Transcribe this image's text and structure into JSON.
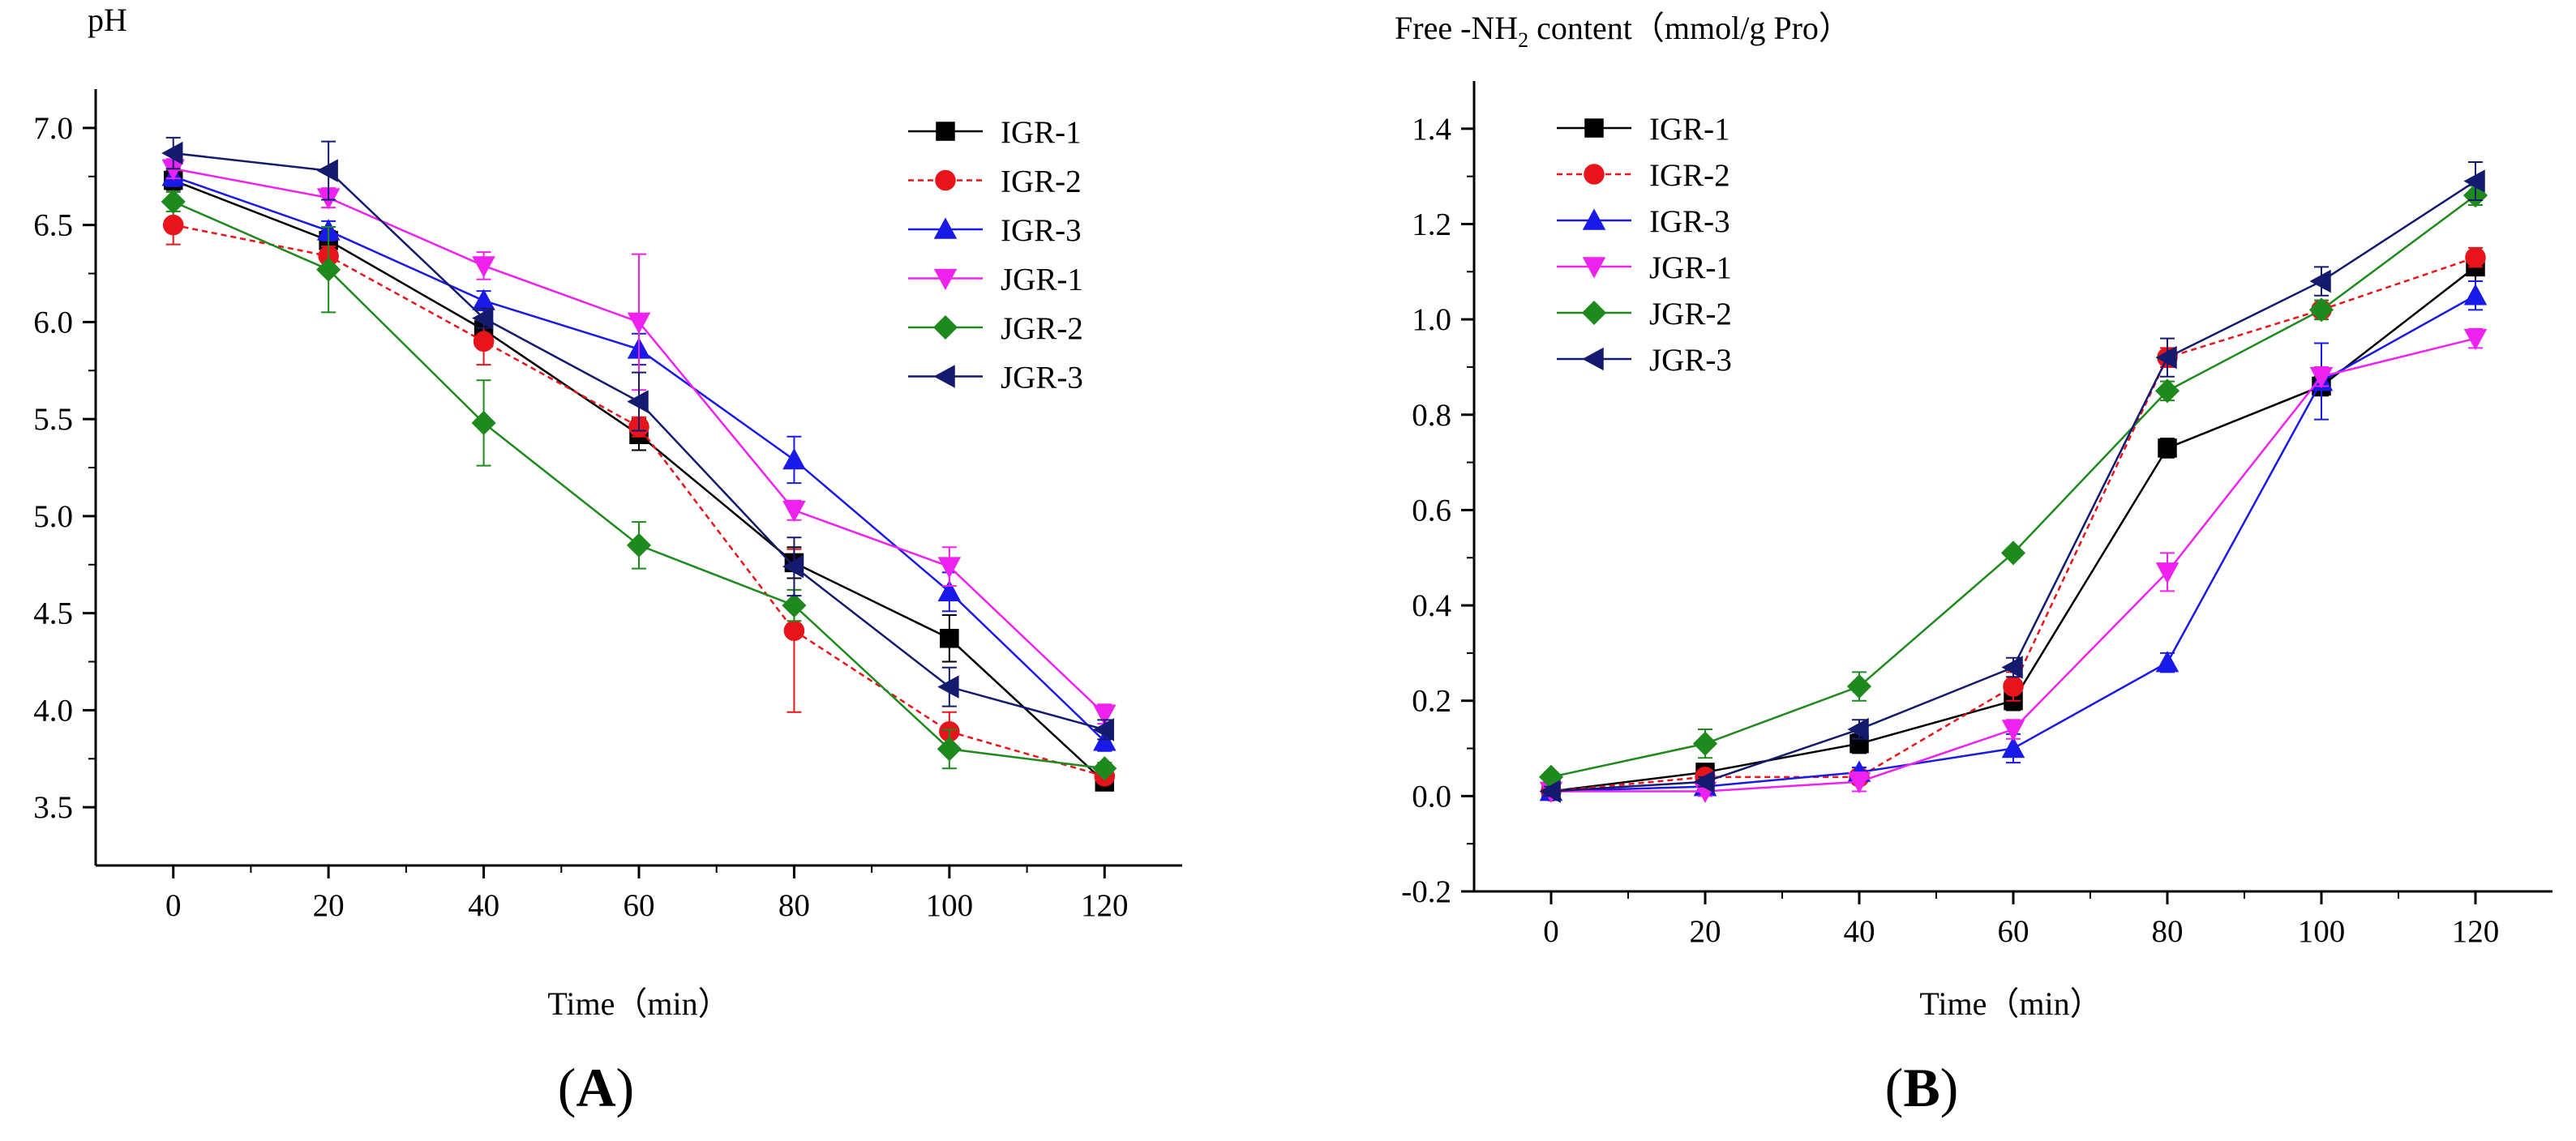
{
  "chart_data": [
    {
      "type": "line",
      "panel_label_open": "(",
      "panel_label_letter": "A",
      "panel_label_close": ")",
      "ylabel": "pH",
      "xlabel": "Time（min）",
      "x": [
        0,
        20,
        40,
        60,
        80,
        100,
        120
      ],
      "xticks": [
        "0",
        "20",
        "40",
        "60",
        "80",
        "100",
        "120"
      ],
      "xlim": [
        -10,
        130
      ],
      "yticks": [
        "3.5",
        "4.0",
        "4.5",
        "5.0",
        "5.5",
        "6.0",
        "6.5",
        "7.0"
      ],
      "ytick_values": [
        3.5,
        4.0,
        4.5,
        5.0,
        5.5,
        6.0,
        6.5,
        7.0
      ],
      "ylim": [
        3.2,
        7.2
      ],
      "legend_position": "top-right",
      "series": [
        {
          "name": "IGR-1",
          "color": "#000000",
          "marker": "square",
          "dash": "solid",
          "values": [
            6.73,
            6.42,
            5.96,
            5.42,
            4.76,
            4.37,
            3.63
          ],
          "errors": [
            0.05,
            0.05,
            0.05,
            0.08,
            0.08,
            0.12,
            0.03
          ]
        },
        {
          "name": "IGR-2",
          "color": "#e8141b",
          "marker": "circle",
          "dash": "dashed",
          "values": [
            6.5,
            6.34,
            5.9,
            5.46,
            4.41,
            3.89,
            3.66
          ],
          "errors": [
            0.1,
            0.05,
            0.12,
            0.05,
            0.42,
            0.1,
            0.03
          ]
        },
        {
          "name": "IGR-3",
          "color": "#1a1ae8",
          "marker": "triangle-up",
          "dash": "solid",
          "values": [
            6.75,
            6.47,
            6.11,
            5.86,
            5.29,
            4.61,
            3.84
          ],
          "errors": [
            0.05,
            0.05,
            0.05,
            0.08,
            0.12,
            0.1,
            0.05
          ]
        },
        {
          "name": "JGR-1",
          "color": "#ee22ee",
          "marker": "triangle-down",
          "dash": "solid",
          "values": [
            6.79,
            6.64,
            6.29,
            6.0,
            5.03,
            4.74,
            3.98
          ],
          "errors": [
            0.05,
            0.05,
            0.07,
            0.35,
            0.05,
            0.1,
            0.05
          ]
        },
        {
          "name": "JGR-2",
          "color": "#1e8a1e",
          "marker": "diamond",
          "dash": "solid",
          "values": [
            6.62,
            6.27,
            5.48,
            4.85,
            4.54,
            3.8,
            3.7
          ],
          "errors": [
            0.05,
            0.22,
            0.22,
            0.12,
            0.08,
            0.1,
            0.03
          ]
        },
        {
          "name": "JGR-3",
          "color": "#141a6e",
          "marker": "triangle-left",
          "dash": "solid",
          "values": [
            6.87,
            6.78,
            6.02,
            5.59,
            4.74,
            4.12,
            3.9
          ],
          "errors": [
            0.08,
            0.15,
            0.05,
            0.15,
            0.15,
            0.1,
            0.05
          ]
        }
      ]
    },
    {
      "type": "line",
      "panel_label_open": "(",
      "panel_label_letter": "B",
      "panel_label_close": ")",
      "ylabel_prefix": "Free -NH",
      "ylabel_sub": "2",
      "ylabel_suffix": " content（mmol/g Pro）",
      "xlabel": "Time（min）",
      "x": [
        0,
        20,
        40,
        60,
        80,
        100,
        120
      ],
      "xticks": [
        "0",
        "20",
        "40",
        "60",
        "80",
        "100",
        "120"
      ],
      "xlim": [
        -10,
        130
      ],
      "yticks": [
        "-0.2",
        "0.0",
        "0.2",
        "0.4",
        "0.6",
        "0.8",
        "1.0",
        "1.2",
        "1.4"
      ],
      "ytick_values": [
        -0.2,
        0.0,
        0.2,
        0.4,
        0.6,
        0.8,
        1.0,
        1.2,
        1.4
      ],
      "ylim": [
        -0.2,
        1.5
      ],
      "legend_position": "top-left",
      "series": [
        {
          "name": "IGR-1",
          "color": "#000000",
          "marker": "square",
          "dash": "solid",
          "values": [
            0.01,
            0.05,
            0.11,
            0.2,
            0.73,
            0.86,
            1.11
          ],
          "errors": [
            0.01,
            0.01,
            0.02,
            0.02,
            0.02,
            0.02,
            0.03
          ]
        },
        {
          "name": "IGR-2",
          "color": "#e8141b",
          "marker": "circle",
          "dash": "dashed",
          "values": [
            0.01,
            0.04,
            0.04,
            0.23,
            0.92,
            1.02,
            1.13
          ],
          "errors": [
            0.01,
            0.01,
            0.01,
            0.03,
            0.02,
            0.02,
            0.02
          ]
        },
        {
          "name": "IGR-3",
          "color": "#1a1ae8",
          "marker": "triangle-up",
          "dash": "solid",
          "values": [
            0.01,
            0.02,
            0.05,
            0.1,
            0.28,
            0.87,
            1.05
          ],
          "errors": [
            0.01,
            0.01,
            0.01,
            0.03,
            0.02,
            0.08,
            0.03
          ]
        },
        {
          "name": "JGR-1",
          "color": "#ee22ee",
          "marker": "triangle-down",
          "dash": "solid",
          "values": [
            0.01,
            0.01,
            0.03,
            0.14,
            0.47,
            0.88,
            0.96
          ],
          "errors": [
            0.01,
            0.01,
            0.02,
            0.02,
            0.04,
            0.02,
            0.02
          ]
        },
        {
          "name": "JGR-2",
          "color": "#1e8a1e",
          "marker": "diamond",
          "dash": "solid",
          "values": [
            0.04,
            0.11,
            0.23,
            0.51,
            0.85,
            1.02,
            1.26
          ],
          "errors": [
            0.01,
            0.03,
            0.03,
            0.01,
            0.02,
            0.02,
            0.02
          ]
        },
        {
          "name": "JGR-3",
          "color": "#141a6e",
          "marker": "triangle-left",
          "dash": "solid",
          "values": [
            0.01,
            0.03,
            0.14,
            0.27,
            0.92,
            1.08,
            1.29
          ],
          "errors": [
            0.01,
            0.01,
            0.02,
            0.02,
            0.04,
            0.03,
            0.04
          ]
        }
      ]
    }
  ]
}
